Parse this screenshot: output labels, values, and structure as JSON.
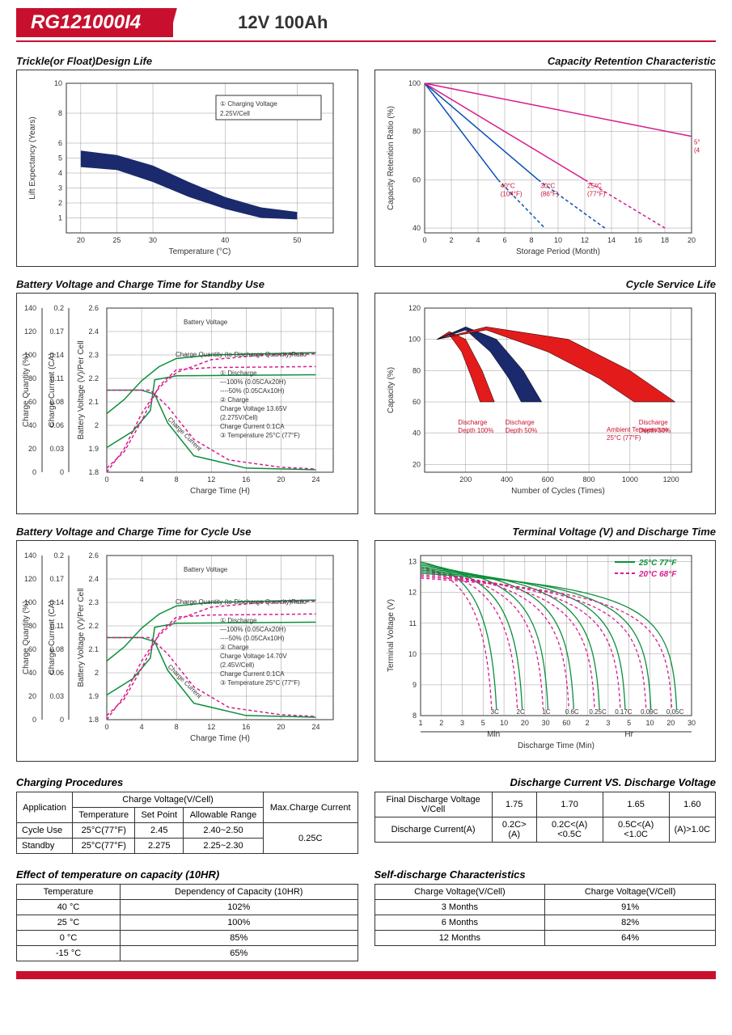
{
  "header": {
    "model": "RG121000I4",
    "spec": "12V  100Ah"
  },
  "colors": {
    "brand_red": "#c8102e",
    "navy": "#1a2a6c",
    "magenta": "#d81b8c",
    "green": "#0b8f3a",
    "blue": "#0b4fb5",
    "red": "#e31b1b",
    "grid": "#999999",
    "bg": "#fdfdfa"
  },
  "chart_trickle": {
    "title": "Trickle(or Float)Design Life",
    "xlabel": "Temperature (°C)",
    "ylabel": "Lift Expectancy (Years)",
    "xlim": [
      18,
      55
    ],
    "xticks": [
      20,
      25,
      30,
      40,
      50
    ],
    "ylim": [
      0,
      10
    ],
    "yticks": [
      1,
      2,
      3,
      4,
      5,
      6,
      8,
      10
    ],
    "band_upper": [
      [
        20,
        5.5
      ],
      [
        25,
        5.2
      ],
      [
        30,
        4.5
      ],
      [
        35,
        3.4
      ],
      [
        40,
        2.4
      ],
      [
        45,
        1.7
      ],
      [
        50,
        1.4
      ]
    ],
    "band_lower": [
      [
        20,
        4.4
      ],
      [
        25,
        4.2
      ],
      [
        30,
        3.4
      ],
      [
        35,
        2.4
      ],
      [
        40,
        1.6
      ],
      [
        45,
        1.0
      ],
      [
        50,
        0.9
      ]
    ],
    "band_color": "#1a2a6c",
    "box_text": "① Charging Voltage\n    2.25V/Cell"
  },
  "chart_retention": {
    "title": "Capacity Retention Characteristic",
    "xlabel": "Storage Period (Month)",
    "ylabel": "Capacity Retention Ratio (%)",
    "xlim": [
      0,
      20
    ],
    "xticks": [
      0,
      2,
      4,
      6,
      8,
      10,
      12,
      14,
      16,
      18,
      20
    ],
    "ylim": [
      38,
      100
    ],
    "yticks": [
      40,
      60,
      80,
      100
    ],
    "series": [
      {
        "label": "40°C (104°F)",
        "color": "#0b4fb5",
        "x1": 0,
        "y1": 100,
        "x2": 5.5,
        "y2": 60,
        "dash_to": [
          9,
          40
        ]
      },
      {
        "label": "30°C (86°F)",
        "color": "#0b4fb5",
        "x1": 0,
        "y1": 100,
        "x2": 8.5,
        "y2": 60,
        "dash_to": [
          13.5,
          40
        ]
      },
      {
        "label": "25°C (77°F)",
        "color": "#d81b8c",
        "x1": 0,
        "y1": 100,
        "x2": 12,
        "y2": 60,
        "dash_to": [
          18,
          40
        ]
      },
      {
        "label": "5°C (41°F)",
        "color": "#d81b8c",
        "x1": 0,
        "y1": 100,
        "x2": 20,
        "y2": 78
      }
    ]
  },
  "chart_standby": {
    "title": "Battery Voltage and Charge Time for Standby Use",
    "xlabel": "Charge Time (H)",
    "y1label": "Charge Quantity (%)",
    "y2label": "Charge Current (CA)",
    "y3label": "Battery Voltage (V)/Per Cell",
    "xlim": [
      0,
      26
    ],
    "xticks": [
      0,
      4,
      8,
      12,
      16,
      20,
      24
    ],
    "y1lim": [
      0,
      140
    ],
    "y1ticks": [
      0,
      20,
      40,
      60,
      80,
      100,
      120,
      140
    ],
    "y2lim": [
      0,
      0.2
    ],
    "y2ticks": [
      0,
      0.03,
      0.06,
      0.08,
      0.11,
      0.14,
      0.17,
      0.2
    ],
    "y3lim": [
      1.8,
      2.6
    ],
    "y3ticks": [
      1.8,
      1.9,
      2.0,
      2.1,
      2.2,
      2.3,
      2.4,
      2.6
    ],
    "lines": {
      "voltage_solid": {
        "color": "#0b8f3a",
        "pts": [
          [
            0,
            1.92
          ],
          [
            3,
            2.0
          ],
          [
            5,
            2.1
          ],
          [
            5.5,
            2.25
          ],
          [
            8,
            2.27
          ],
          [
            24,
            2.275
          ]
        ]
      },
      "voltage_dash": {
        "color": "#d81b8c",
        "dash": true,
        "pts": [
          [
            0,
            1.82
          ],
          [
            2,
            1.9
          ],
          [
            4,
            2.05
          ],
          [
            6,
            2.22
          ],
          [
            8,
            2.3
          ],
          [
            12,
            2.31
          ],
          [
            24,
            2.315
          ]
        ]
      },
      "qty_solid": {
        "color": "#0b8f3a",
        "pts": [
          [
            0,
            50
          ],
          [
            2,
            62
          ],
          [
            4,
            78
          ],
          [
            6,
            90
          ],
          [
            8,
            97
          ],
          [
            12,
            100
          ],
          [
            24,
            102
          ]
        ],
        "axis": "y1"
      },
      "qty_dash": {
        "color": "#d81b8c",
        "dash": true,
        "pts": [
          [
            0,
            0
          ],
          [
            2,
            20
          ],
          [
            4,
            50
          ],
          [
            6,
            72
          ],
          [
            8,
            85
          ],
          [
            12,
            96
          ],
          [
            18,
            100
          ],
          [
            24,
            101
          ]
        ],
        "axis": "y1"
      },
      "current_solid": {
        "color": "#0b8f3a",
        "pts": [
          [
            0,
            0.1
          ],
          [
            4,
            0.1
          ],
          [
            5.5,
            0.095
          ],
          [
            7,
            0.06
          ],
          [
            10,
            0.02
          ],
          [
            16,
            0.005
          ],
          [
            24,
            0.003
          ]
        ],
        "axis": "y2"
      },
      "current_dash": {
        "color": "#d81b8c",
        "dash": true,
        "pts": [
          [
            0,
            0.1
          ],
          [
            5,
            0.1
          ],
          [
            7,
            0.08
          ],
          [
            10,
            0.04
          ],
          [
            14,
            0.015
          ],
          [
            20,
            0.006
          ],
          [
            24,
            0.004
          ]
        ],
        "axis": "y2"
      }
    },
    "text_box": "① Discharge\n    —100% (0.05CAx20H)\n    ----50% (0.05CAx10H)\n② Charge\n    Charge Voltage 13.65V\n    (2.275V/Cell)\n    Charge Current 0.1CA\n③ Temperature 25°C (77°F)"
  },
  "chart_cycle_life": {
    "title": "Cycle Service Life",
    "xlabel": "Number of Cycles (Times)",
    "ylabel": "Capacity (%)",
    "xlim": [
      0,
      1300
    ],
    "xticks": [
      200,
      400,
      600,
      800,
      1000,
      1200
    ],
    "ylim": [
      15,
      120
    ],
    "yticks": [
      20,
      40,
      60,
      80,
      100,
      120
    ],
    "bands": [
      {
        "label": "Discharge\nDepth 100%",
        "color": "#e31b1b",
        "upper": [
          [
            60,
            100
          ],
          [
            120,
            105
          ],
          [
            200,
            100
          ],
          [
            280,
            80
          ],
          [
            340,
            60
          ]
        ],
        "lower": [
          [
            60,
            100
          ],
          [
            120,
            103
          ],
          [
            180,
            92
          ],
          [
            230,
            75
          ],
          [
            270,
            60
          ]
        ]
      },
      {
        "label": "Discharge\nDepth 50%",
        "color": "#1a2a6c",
        "upper": [
          [
            60,
            100
          ],
          [
            200,
            108
          ],
          [
            350,
            100
          ],
          [
            480,
            80
          ],
          [
            570,
            60
          ]
        ],
        "lower": [
          [
            60,
            100
          ],
          [
            200,
            106
          ],
          [
            320,
            92
          ],
          [
            410,
            75
          ],
          [
            470,
            60
          ]
        ]
      },
      {
        "label": "Discharge\nDepth 30%",
        "color": "#e31b1b",
        "upper": [
          [
            60,
            100
          ],
          [
            300,
            108
          ],
          [
            700,
            100
          ],
          [
            1000,
            80
          ],
          [
            1220,
            60
          ]
        ],
        "lower": [
          [
            60,
            100
          ],
          [
            300,
            106
          ],
          [
            600,
            92
          ],
          [
            850,
            75
          ],
          [
            1020,
            60
          ]
        ]
      }
    ],
    "note": "Ambient Temperature\n25°C (77°F)"
  },
  "chart_cycle_use": {
    "title": "Battery Voltage and Charge Time for Cycle Use",
    "text_box": "① Discharge\n    —100% (0.05CAx20H)\n    ----50% (0.05CAx10H)\n② Charge\n    Charge Voltage 14.70V\n    (2.45V/Cell)\n    Charge Current 0.1CA\n③ Temperature 25°C (77°F)"
  },
  "chart_terminal": {
    "title": "Terminal Voltage (V) and Discharge Time",
    "xlabel": "Discharge Time (Min)",
    "ylabel": "Terminal Voltage (V)",
    "ylim": [
      8,
      13.2
    ],
    "yticks": [
      8,
      9,
      10,
      11,
      12,
      13
    ],
    "legend25": "25°C 77°F",
    "legend20": "20°C 68°F",
    "curve_labels": [
      "3C",
      "2C",
      "1C",
      "0.6C",
      "0.25C",
      "0.17C",
      "0.09C",
      "0.05C"
    ],
    "xsections": [
      "1",
      "2",
      "3",
      "5",
      "10",
      "20",
      "30",
      "60",
      "2",
      "3",
      "5",
      "10",
      "20",
      "30"
    ],
    "min_label": "Min",
    "hr_label": "Hr"
  },
  "table_charging": {
    "title": "Charging Procedures",
    "headers": {
      "app": "Application",
      "cv": "Charge Voltage(V/Cell)",
      "temp": "Temperature",
      "sp": "Set Point",
      "ar": "Allowable Range",
      "max": "Max.Charge Current"
    },
    "rows": [
      {
        "app": "Cycle Use",
        "temp": "25°C(77°F)",
        "sp": "2.45",
        "ar": "2.40~2.50"
      },
      {
        "app": "Standby",
        "temp": "25°C(77°F)",
        "sp": "2.275",
        "ar": "2.25~2.30"
      }
    ],
    "max": "0.25C"
  },
  "table_discharge_voltage": {
    "title": "Discharge Current VS. Discharge Voltage",
    "h1": "Final Discharge Voltage V/Cell",
    "h2": "Discharge Current(A)",
    "cols": [
      "1.75",
      "1.70",
      "1.65",
      "1.60"
    ],
    "vals": [
      "0.2C>(A)",
      "0.2C<(A)<0.5C",
      "0.5C<(A)<1.0C",
      "(A)>1.0C"
    ]
  },
  "table_temp_capacity": {
    "title": "Effect of temperature on capacity (10HR)",
    "h1": "Temperature",
    "h2": "Dependency of Capacity (10HR)",
    "rows": [
      [
        "40 °C",
        "102%"
      ],
      [
        "25 °C",
        "100%"
      ],
      [
        "0 °C",
        "85%"
      ],
      [
        "-15 °C",
        "65%"
      ]
    ]
  },
  "table_self_discharge": {
    "title": "Self-discharge Characteristics",
    "h1": "Charge Voltage(V/Cell)",
    "h2": "Charge Voltage(V/Cell)",
    "rows": [
      [
        "3 Months",
        "91%"
      ],
      [
        "6 Months",
        "82%"
      ],
      [
        "12 Months",
        "64%"
      ]
    ]
  }
}
